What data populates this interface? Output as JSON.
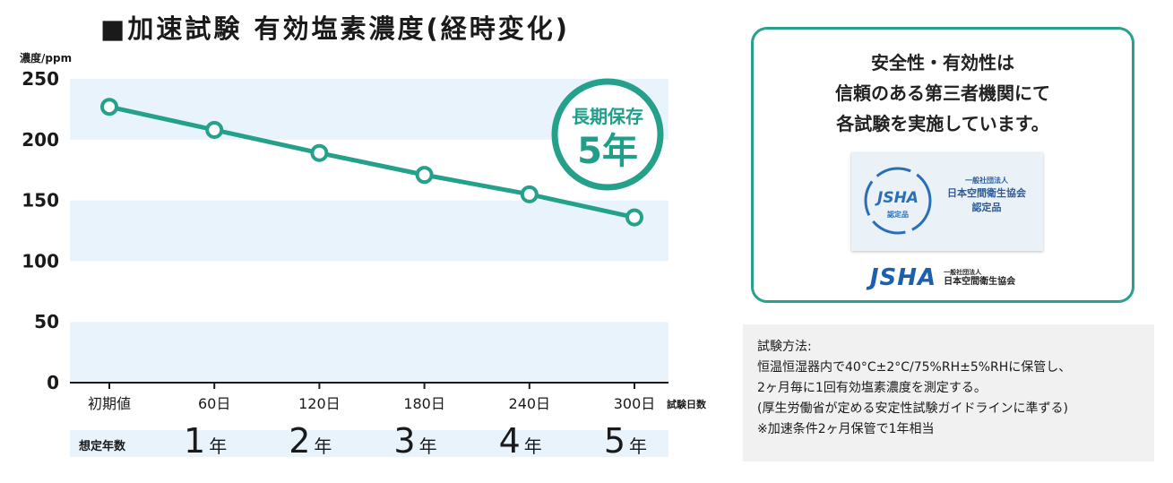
{
  "chart_data": {
    "type": "line",
    "title": "■加速試験 有効塩素濃度(経時変化)",
    "ylabel": "濃度/ppm",
    "xlabel": "試験日数",
    "ylim": [
      0,
      250
    ],
    "yticks": [
      0,
      50,
      100,
      150,
      200,
      250
    ],
    "categories": [
      "初期値",
      "60日",
      "120日",
      "180日",
      "240日",
      "300日"
    ],
    "series": [
      {
        "name": "有効塩素濃度",
        "values": [
          227,
          208,
          189,
          171,
          155,
          136
        ]
      }
    ],
    "years_label": "想定年数",
    "years": [
      {
        "num": "1",
        "unit": "年"
      },
      {
        "num": "2",
        "unit": "年"
      },
      {
        "num": "3",
        "unit": "年"
      },
      {
        "num": "4",
        "unit": "年"
      },
      {
        "num": "5",
        "unit": "年"
      }
    ],
    "badge": {
      "line1": "長期保存",
      "line2": "5年"
    },
    "colors": {
      "line": "#24a08b",
      "band": "#e9f3fb",
      "axis": "#1a1a1a"
    }
  },
  "safety": {
    "title_lines": [
      "安全性・有効性は",
      "信頼のある第三者機関にて",
      "各試験を実施しています。"
    ],
    "certificate": {
      "seal_text": "JSHA",
      "seal_sub": "認定品",
      "org_small": "一般社団法人",
      "org_name": "日本空間衛生協会",
      "cert_label": "認定品"
    },
    "org_logo": "JSHA",
    "org_small": "一般社団法人",
    "org_name": "日本空間衛生協会",
    "border_color": "#27a08c"
  },
  "method": {
    "label": "試験方法:",
    "lines": [
      "恒温恒湿器内で40°C±2°C/75%RH±5%RHに保管し、",
      " 2ヶ月毎に1回有効塩素濃度を測定する。",
      "(厚生労働省が定める安定性試験ガイドラインに準ずる)",
      "※加速条件2ヶ月保管で1年相当"
    ]
  }
}
